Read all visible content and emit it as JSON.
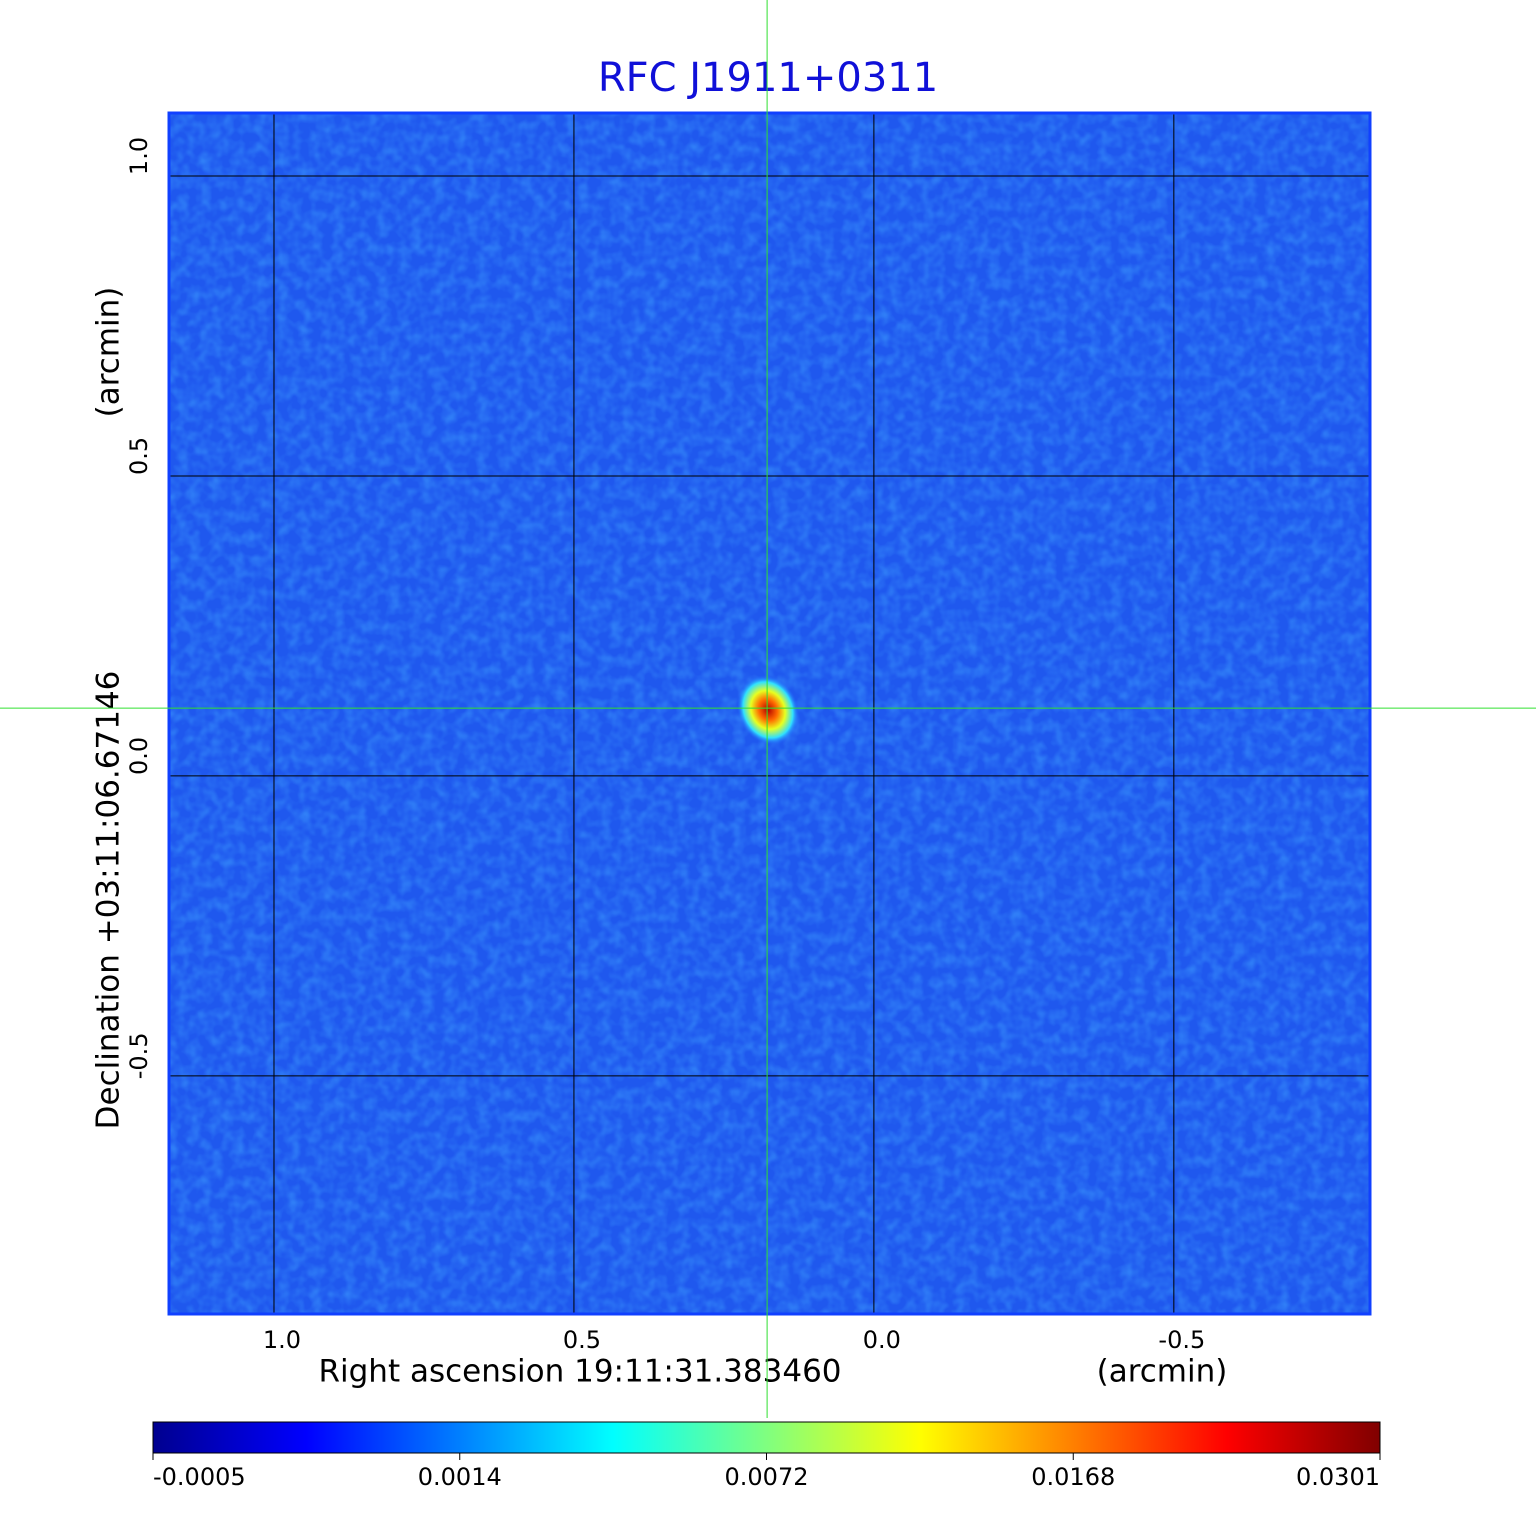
{
  "chart_data": {
    "type": "image",
    "title": "RFC J1911+0311",
    "xlabel": "Right ascension  19:11:31.383460",
    "xunit": "(arcmin)",
    "ylabel": "Declination  +03:11:06.67146",
    "yunit": "(arcmin)",
    "xlim": [
      1.175,
      -0.827
    ],
    "ylim": [
      -0.897,
      1.105
    ],
    "xticks": [
      {
        "value": 1,
        "label": "1.0"
      },
      0.5,
      {
        "value": 0,
        "label": "0.0"
      },
      -0.5
    ],
    "yticks": [
      {
        "value": 1,
        "label": "1.0"
      },
      0.5,
      {
        "value": 0,
        "label": "0.0"
      },
      -0.5
    ],
    "crosshair": [
      0.178,
      0.113
    ],
    "grid": true,
    "colorbar_ticks": [
      -0.0005,
      0.0014,
      0.0072,
      0.0168,
      0.0301
    ]
  }
}
